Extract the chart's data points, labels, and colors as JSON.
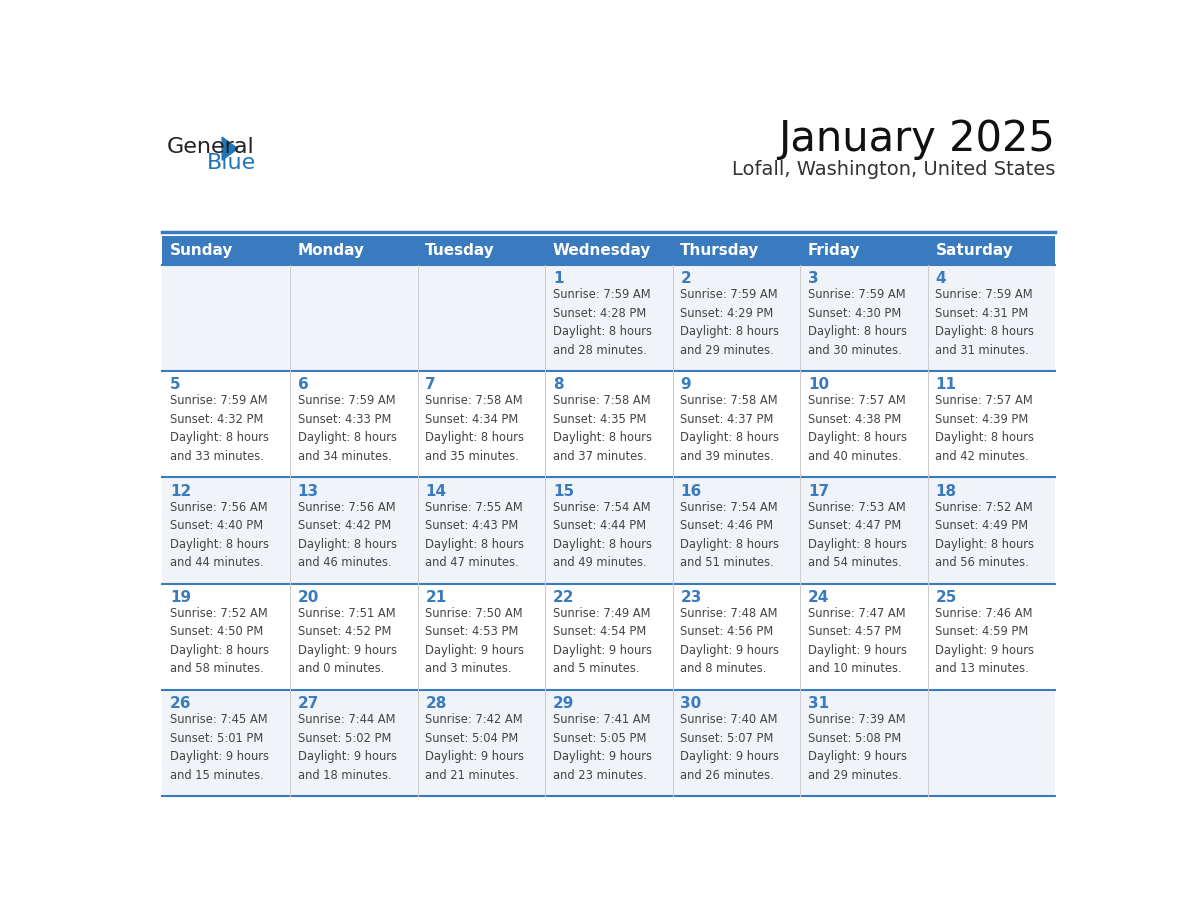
{
  "title": "January 2025",
  "subtitle": "Lofall, Washington, United States",
  "header_color": "#3a7bbf",
  "header_text_color": "#ffffff",
  "cell_bg_odd": "#f0f4f8",
  "cell_bg_even": "#ffffff",
  "day_headers": [
    "Sunday",
    "Monday",
    "Tuesday",
    "Wednesday",
    "Thursday",
    "Friday",
    "Saturday"
  ],
  "grid_line_color": "#3a7bbf",
  "day_number_color": "#3a7bbf",
  "text_color": "#444444",
  "logo_general_color": "#222222",
  "logo_blue_color": "#2176b8",
  "weeks": [
    [
      {
        "day": 0,
        "text": ""
      },
      {
        "day": 0,
        "text": ""
      },
      {
        "day": 0,
        "text": ""
      },
      {
        "day": 1,
        "text": "Sunrise: 7:59 AM\nSunset: 4:28 PM\nDaylight: 8 hours\nand 28 minutes."
      },
      {
        "day": 2,
        "text": "Sunrise: 7:59 AM\nSunset: 4:29 PM\nDaylight: 8 hours\nand 29 minutes."
      },
      {
        "day": 3,
        "text": "Sunrise: 7:59 AM\nSunset: 4:30 PM\nDaylight: 8 hours\nand 30 minutes."
      },
      {
        "day": 4,
        "text": "Sunrise: 7:59 AM\nSunset: 4:31 PM\nDaylight: 8 hours\nand 31 minutes."
      }
    ],
    [
      {
        "day": 5,
        "text": "Sunrise: 7:59 AM\nSunset: 4:32 PM\nDaylight: 8 hours\nand 33 minutes."
      },
      {
        "day": 6,
        "text": "Sunrise: 7:59 AM\nSunset: 4:33 PM\nDaylight: 8 hours\nand 34 minutes."
      },
      {
        "day": 7,
        "text": "Sunrise: 7:58 AM\nSunset: 4:34 PM\nDaylight: 8 hours\nand 35 minutes."
      },
      {
        "day": 8,
        "text": "Sunrise: 7:58 AM\nSunset: 4:35 PM\nDaylight: 8 hours\nand 37 minutes."
      },
      {
        "day": 9,
        "text": "Sunrise: 7:58 AM\nSunset: 4:37 PM\nDaylight: 8 hours\nand 39 minutes."
      },
      {
        "day": 10,
        "text": "Sunrise: 7:57 AM\nSunset: 4:38 PM\nDaylight: 8 hours\nand 40 minutes."
      },
      {
        "day": 11,
        "text": "Sunrise: 7:57 AM\nSunset: 4:39 PM\nDaylight: 8 hours\nand 42 minutes."
      }
    ],
    [
      {
        "day": 12,
        "text": "Sunrise: 7:56 AM\nSunset: 4:40 PM\nDaylight: 8 hours\nand 44 minutes."
      },
      {
        "day": 13,
        "text": "Sunrise: 7:56 AM\nSunset: 4:42 PM\nDaylight: 8 hours\nand 46 minutes."
      },
      {
        "day": 14,
        "text": "Sunrise: 7:55 AM\nSunset: 4:43 PM\nDaylight: 8 hours\nand 47 minutes."
      },
      {
        "day": 15,
        "text": "Sunrise: 7:54 AM\nSunset: 4:44 PM\nDaylight: 8 hours\nand 49 minutes."
      },
      {
        "day": 16,
        "text": "Sunrise: 7:54 AM\nSunset: 4:46 PM\nDaylight: 8 hours\nand 51 minutes."
      },
      {
        "day": 17,
        "text": "Sunrise: 7:53 AM\nSunset: 4:47 PM\nDaylight: 8 hours\nand 54 minutes."
      },
      {
        "day": 18,
        "text": "Sunrise: 7:52 AM\nSunset: 4:49 PM\nDaylight: 8 hours\nand 56 minutes."
      }
    ],
    [
      {
        "day": 19,
        "text": "Sunrise: 7:52 AM\nSunset: 4:50 PM\nDaylight: 8 hours\nand 58 minutes."
      },
      {
        "day": 20,
        "text": "Sunrise: 7:51 AM\nSunset: 4:52 PM\nDaylight: 9 hours\nand 0 minutes."
      },
      {
        "day": 21,
        "text": "Sunrise: 7:50 AM\nSunset: 4:53 PM\nDaylight: 9 hours\nand 3 minutes."
      },
      {
        "day": 22,
        "text": "Sunrise: 7:49 AM\nSunset: 4:54 PM\nDaylight: 9 hours\nand 5 minutes."
      },
      {
        "day": 23,
        "text": "Sunrise: 7:48 AM\nSunset: 4:56 PM\nDaylight: 9 hours\nand 8 minutes."
      },
      {
        "day": 24,
        "text": "Sunrise: 7:47 AM\nSunset: 4:57 PM\nDaylight: 9 hours\nand 10 minutes."
      },
      {
        "day": 25,
        "text": "Sunrise: 7:46 AM\nSunset: 4:59 PM\nDaylight: 9 hours\nand 13 minutes."
      }
    ],
    [
      {
        "day": 26,
        "text": "Sunrise: 7:45 AM\nSunset: 5:01 PM\nDaylight: 9 hours\nand 15 minutes."
      },
      {
        "day": 27,
        "text": "Sunrise: 7:44 AM\nSunset: 5:02 PM\nDaylight: 9 hours\nand 18 minutes."
      },
      {
        "day": 28,
        "text": "Sunrise: 7:42 AM\nSunset: 5:04 PM\nDaylight: 9 hours\nand 21 minutes."
      },
      {
        "day": 29,
        "text": "Sunrise: 7:41 AM\nSunset: 5:05 PM\nDaylight: 9 hours\nand 23 minutes."
      },
      {
        "day": 30,
        "text": "Sunrise: 7:40 AM\nSunset: 5:07 PM\nDaylight: 9 hours\nand 26 minutes."
      },
      {
        "day": 31,
        "text": "Sunrise: 7:39 AM\nSunset: 5:08 PM\nDaylight: 9 hours\nand 29 minutes."
      },
      {
        "day": 0,
        "text": ""
      }
    ]
  ]
}
